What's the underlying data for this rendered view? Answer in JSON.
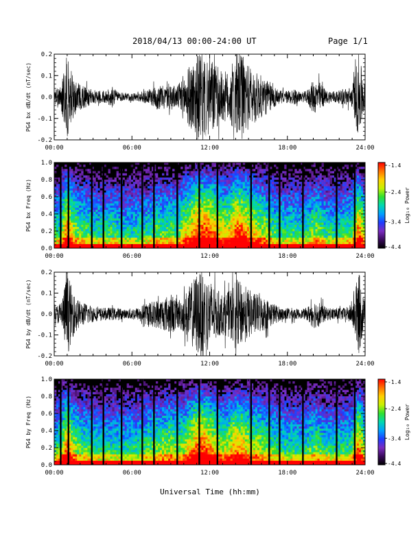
{
  "header": {
    "title": "2018/04/13  00:00-24:00 UT",
    "page": "Page 1/1"
  },
  "x_axis_label": "Universal Time (hh:mm)",
  "colorbar": {
    "ticks": [
      "-1.4",
      "-2.4",
      "-3.4",
      "-4.4"
    ],
    "label": "Log₁₀ Power"
  },
  "chart_data": [
    {
      "type": "line",
      "ylabel": "PG4 bx dB/dt (nT/sec)",
      "x_ticks": [
        "00:00",
        "06:00",
        "12:00",
        "18:00",
        "24:00"
      ],
      "y_ticks": [
        "0.2",
        "0.1",
        "0.0",
        "-0.1",
        "-0.2"
      ],
      "xlim": [
        0,
        24
      ],
      "ylim": [
        -0.2,
        0.2
      ],
      "envelope": {
        "hours": [
          0,
          0.5,
          1,
          1.5,
          2,
          2.5,
          3,
          3.5,
          4,
          4.5,
          5,
          5.5,
          6,
          6.5,
          7,
          7.5,
          8,
          8.5,
          9,
          9.5,
          10,
          10.5,
          11,
          11.5,
          12,
          12.5,
          13,
          13.5,
          14,
          14.5,
          15,
          15.5,
          16,
          16.5,
          17,
          17.5,
          18,
          18.5,
          19,
          19.5,
          20,
          20.5,
          21,
          21.5,
          22,
          22.5,
          23,
          23.5,
          24
        ],
        "amplitude": [
          0.03,
          0.05,
          0.2,
          0.09,
          0.06,
          0.05,
          0.03,
          0.03,
          0.03,
          0.05,
          0.02,
          0.02,
          0.02,
          0.02,
          0.03,
          0.04,
          0.06,
          0.05,
          0.06,
          0.05,
          0.11,
          0.15,
          0.2,
          0.2,
          0.2,
          0.15,
          0.12,
          0.12,
          0.2,
          0.2,
          0.15,
          0.12,
          0.1,
          0.08,
          0.05,
          0.03,
          0.03,
          0.04,
          0.02,
          0.03,
          0.08,
          0.07,
          0.03,
          0.03,
          0.03,
          0.04,
          0.05,
          0.2,
          0.06
        ]
      }
    },
    {
      "type": "heatmap",
      "ylabel": "PG4 bx Freq (Hz)",
      "x_ticks": [
        "00:00",
        "06:00",
        "12:00",
        "18:00",
        "24:00"
      ],
      "y_ticks": [
        "1.0",
        "0.8",
        "0.6",
        "0.4",
        "0.2",
        "0.0"
      ],
      "xlim": [
        0,
        24
      ],
      "ylim": [
        0,
        1.0
      ],
      "zlim": [
        -4.4,
        -1.4
      ],
      "colorscale": [
        "#000000",
        "#3a0a5c",
        "#7b2cc0",
        "#1e3cff",
        "#00a0ff",
        "#00d8b0",
        "#30e030",
        "#c8f000",
        "#ffd000",
        "#ff7000",
        "#ff0000"
      ],
      "data_gap_hours": [
        0.5,
        1.1,
        2.9,
        3.8,
        5.2,
        6.8,
        7.7,
        9.5,
        11.2,
        12.6,
        15.2,
        16.6,
        17.4,
        19.2,
        21.8,
        23.2
      ]
    },
    {
      "type": "line",
      "ylabel": "PG4 by dB/dt (nT/sec)",
      "x_ticks": [
        "00:00",
        "06:00",
        "12:00",
        "18:00",
        "24:00"
      ],
      "y_ticks": [
        "0.2",
        "0.1",
        "0.0",
        "-0.1",
        "-0.2"
      ],
      "xlim": [
        0,
        24
      ],
      "ylim": [
        -0.2,
        0.2
      ],
      "envelope": {
        "hours": [
          0,
          0.5,
          1,
          1.5,
          2,
          2.5,
          3,
          3.5,
          4,
          4.5,
          5,
          5.5,
          6,
          6.5,
          7,
          7.5,
          8,
          8.5,
          9,
          9.5,
          10,
          10.5,
          11,
          11.5,
          12,
          12.5,
          13,
          13.5,
          14,
          14.5,
          15,
          15.5,
          16,
          16.5,
          17,
          17.5,
          18,
          18.5,
          19,
          19.5,
          20,
          20.5,
          21,
          21.5,
          22,
          22.5,
          23,
          23.5,
          24
        ],
        "amplitude": [
          0.03,
          0.06,
          0.2,
          0.1,
          0.06,
          0.05,
          0.04,
          0.03,
          0.03,
          0.03,
          0.03,
          0.02,
          0.03,
          0.03,
          0.05,
          0.06,
          0.07,
          0.08,
          0.1,
          0.07,
          0.09,
          0.14,
          0.2,
          0.2,
          0.17,
          0.12,
          0.1,
          0.11,
          0.17,
          0.15,
          0.12,
          0.1,
          0.09,
          0.07,
          0.05,
          0.03,
          0.03,
          0.03,
          0.02,
          0.03,
          0.07,
          0.06,
          0.03,
          0.03,
          0.03,
          0.03,
          0.05,
          0.2,
          0.05
        ]
      }
    },
    {
      "type": "heatmap",
      "ylabel": "PG4 by Freq (Hz)",
      "x_ticks": [
        "00:00",
        "06:00",
        "12:00",
        "18:00",
        "24:00"
      ],
      "y_ticks": [
        "1.0",
        "0.8",
        "0.6",
        "0.4",
        "0.2",
        "0.0"
      ],
      "xlim": [
        0,
        24
      ],
      "ylim": [
        0,
        1.0
      ],
      "zlim": [
        -4.4,
        -1.4
      ],
      "colorscale": [
        "#000000",
        "#3a0a5c",
        "#7b2cc0",
        "#1e3cff",
        "#00a0ff",
        "#00d8b0",
        "#30e030",
        "#c8f000",
        "#ffd000",
        "#ff7000",
        "#ff0000"
      ],
      "data_gap_hours": [
        0.5,
        1.1,
        2.9,
        3.8,
        5.2,
        6.8,
        7.7,
        9.5,
        11.2,
        12.6,
        15.2,
        16.6,
        17.4,
        19.2,
        21.8,
        23.2
      ]
    }
  ]
}
